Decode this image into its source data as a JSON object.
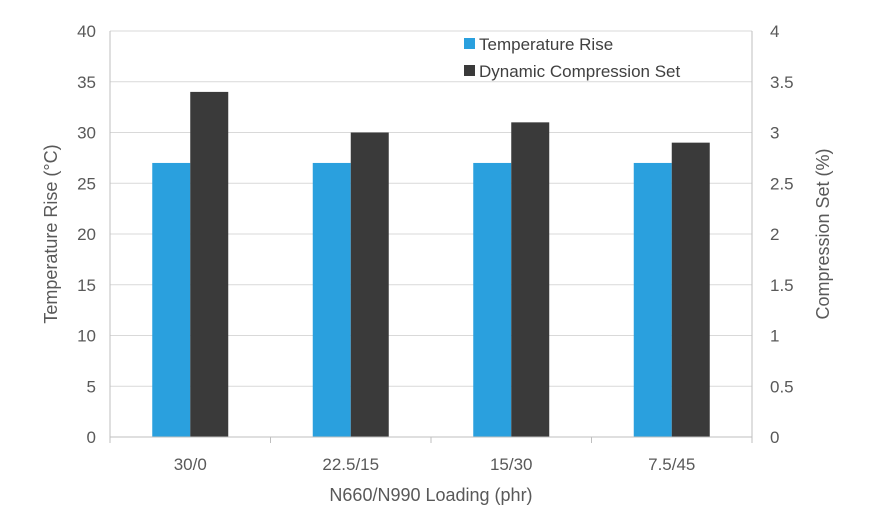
{
  "chart_data": {
    "type": "bar",
    "categories": [
      "30/0",
      "22.5/15",
      "15/30",
      "7.5/45"
    ],
    "series": [
      {
        "name": "Temperature Rise",
        "axis": "left",
        "color": "#2aa0de",
        "values": [
          27,
          27,
          27,
          27
        ]
      },
      {
        "name": "Dynamic Compression Set",
        "axis": "right",
        "color": "#3a3a3a",
        "values": [
          3.4,
          3.0,
          3.1,
          2.9
        ]
      }
    ],
    "xlabel": "N660/N990 Loading (phr)",
    "ylabel": "Temperature Rise (°C)",
    "y2label": "Compression Set (%)",
    "ylim": [
      0,
      40
    ],
    "y2lim": [
      0,
      4
    ],
    "yticks": [
      "0",
      "5",
      "10",
      "15",
      "20",
      "25",
      "30",
      "35",
      "40"
    ],
    "y2ticks": [
      "0",
      "0.5",
      "1",
      "1.5",
      "2",
      "2.5",
      "3",
      "3.5",
      "4"
    ],
    "grid": true,
    "legend_position": "top-right",
    "gridline_color": "#d9d9d9",
    "axis_color": "#bfbfbf"
  }
}
